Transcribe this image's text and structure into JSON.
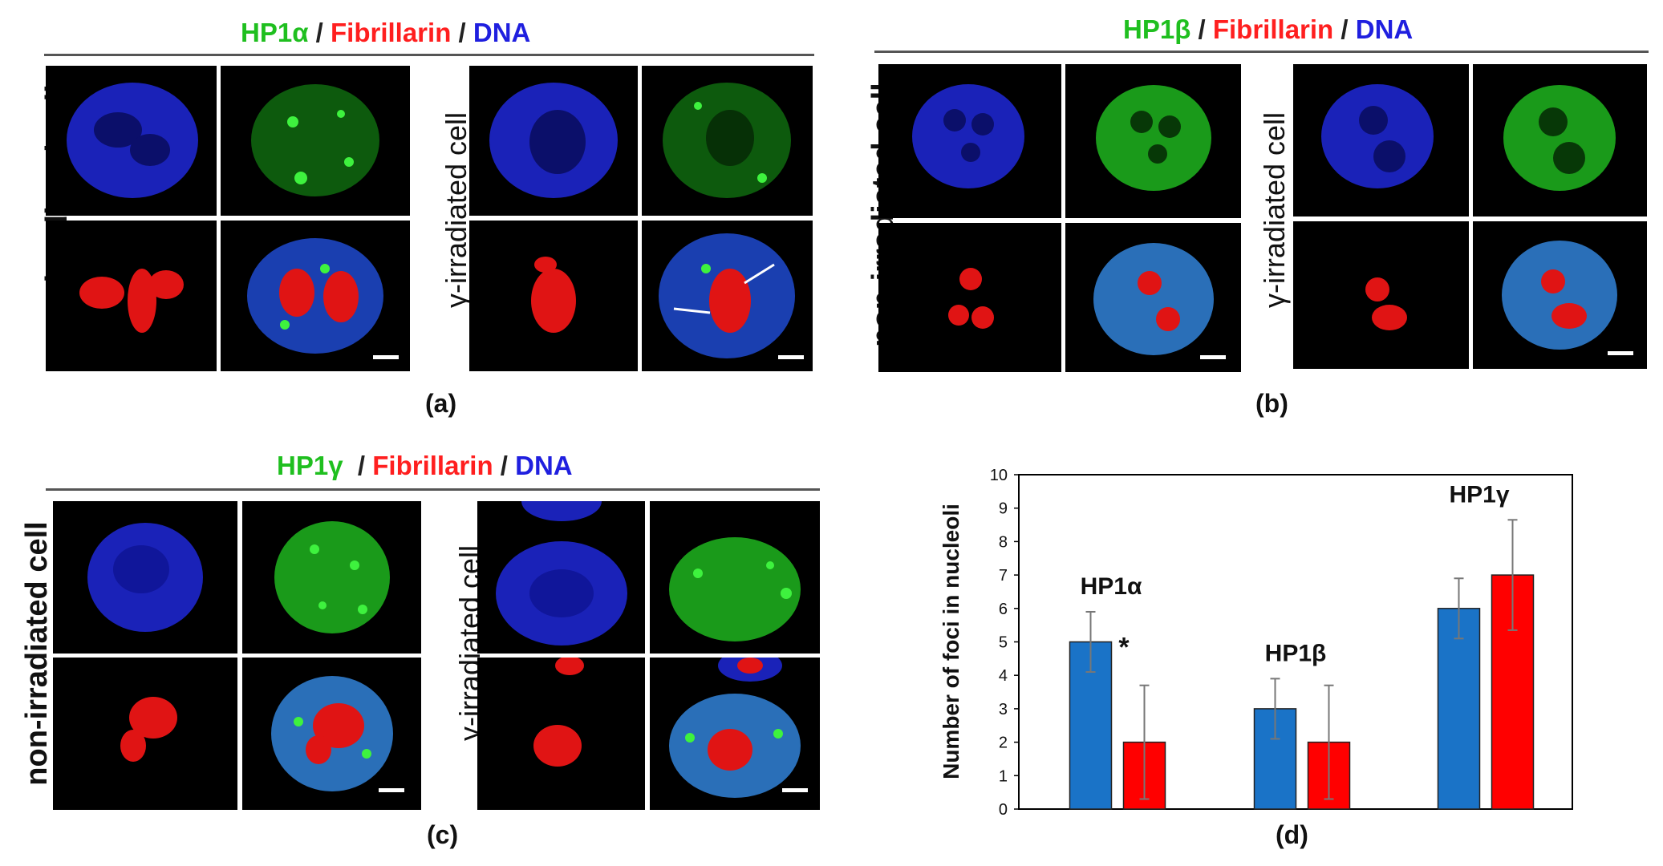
{
  "figures": {
    "a": {
      "title": {
        "p1": "HP1α",
        "s1": " / ",
        "p2": "Fibrillarin",
        "s2": " / ",
        "p3": "DNA"
      },
      "left_label": "non-irradiated cell",
      "right_label": "γ-irradiated cell",
      "panel_label": "(a)"
    },
    "b": {
      "title": {
        "p1": "HP1β",
        "s1": " / ",
        "p2": "Fibrillarin",
        "s2": " / ",
        "p3": "DNA"
      },
      "left_label": "non-irradiated cell",
      "right_label": "γ-irradiated cell",
      "panel_label": "(b)"
    },
    "c": {
      "title": {
        "p1": "HP1γ",
        "s1": "  / ",
        "p2": "Fibrillarin",
        "s2": " / ",
        "p3": "DNA"
      },
      "left_label": "non-irradiated cell",
      "right_label": "γ-irradiated cell",
      "panel_label": "(c)"
    },
    "d": {
      "panel_label": "(d)"
    }
  },
  "colors": {
    "nonirradiated_bar": "#1a73c7",
    "irradiated_bar": "#ff0000",
    "dna_blue": "#1e2fd8",
    "hp1_green": "#22c422",
    "fibrillarin_red": "#ff2a2a"
  },
  "chart_data": {
    "type": "bar",
    "ylabel": "Number of foci in nucleoli",
    "ylim": [
      0,
      10
    ],
    "yticks": [
      "0",
      "1",
      "2",
      "3",
      "4",
      "5",
      "6",
      "7",
      "8",
      "9",
      "10"
    ],
    "categories": [
      "HP1α",
      "HP1β",
      "HP1γ"
    ],
    "series": [
      {
        "values": [
          5,
          3,
          6
        ],
        "errors": [
          0.9,
          0.9,
          0.9
        ]
      },
      {
        "values": [
          2,
          2,
          7
        ],
        "errors": [
          1.7,
          1.7,
          1.65
        ]
      }
    ],
    "annotations": [
      {
        "text": "*",
        "category": "HP1α"
      }
    ]
  }
}
